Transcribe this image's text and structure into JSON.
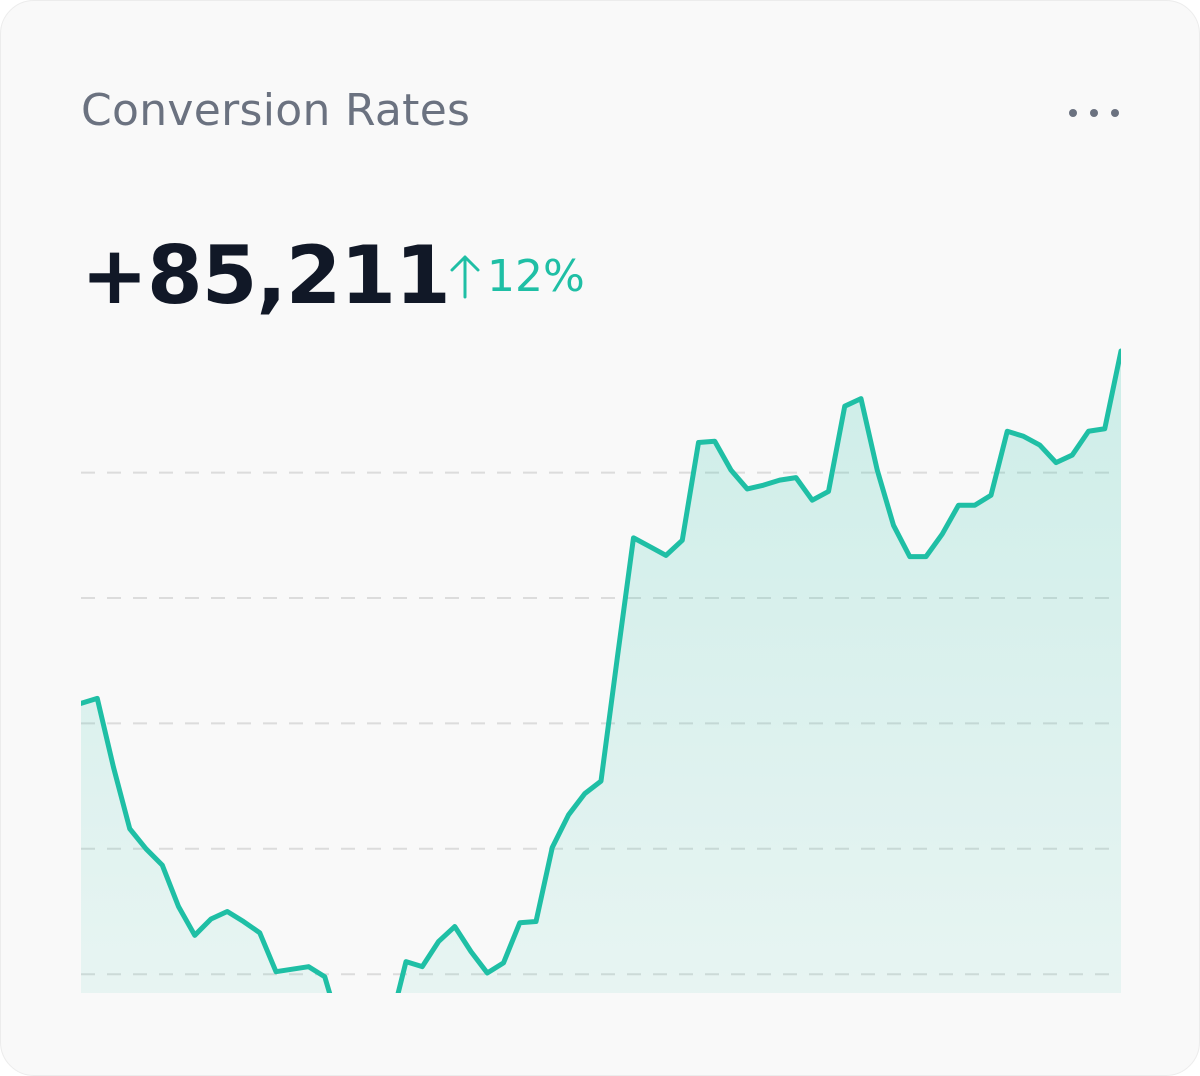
{
  "header": {
    "title": "Conversion Rates"
  },
  "summary": {
    "value": "+85,211",
    "change": "12%"
  },
  "chart_data": {
    "type": "area",
    "values": [
      3.16,
      3.2,
      2.65,
      2.16,
      2.0,
      1.87,
      1.54,
      1.31,
      1.44,
      1.5,
      1.42,
      1.33,
      1.02,
      1.04,
      1.06,
      0.98,
      0.54,
      0.39,
      0.39,
      0.58,
      1.1,
      1.06,
      1.26,
      1.38,
      1.18,
      1.01,
      1.09,
      1.41,
      1.42,
      2.01,
      2.27,
      2.44,
      2.54,
      3.52,
      4.48,
      4.41,
      4.34,
      4.46,
      5.24,
      5.25,
      5.02,
      4.87,
      4.9,
      4.94,
      4.96,
      4.78,
      4.85,
      5.53,
      5.59,
      5.02,
      4.58,
      4.33,
      4.33,
      4.51,
      4.74,
      4.74,
      4.82,
      5.33,
      5.29,
      5.22,
      5.08,
      5.14,
      5.33,
      5.35,
      5.97
    ],
    "color": "#1fbfa5",
    "ylim": [
      0.85,
      5.97
    ],
    "yticks": [
      1,
      2,
      3,
      4,
      5
    ],
    "grid": true
  }
}
